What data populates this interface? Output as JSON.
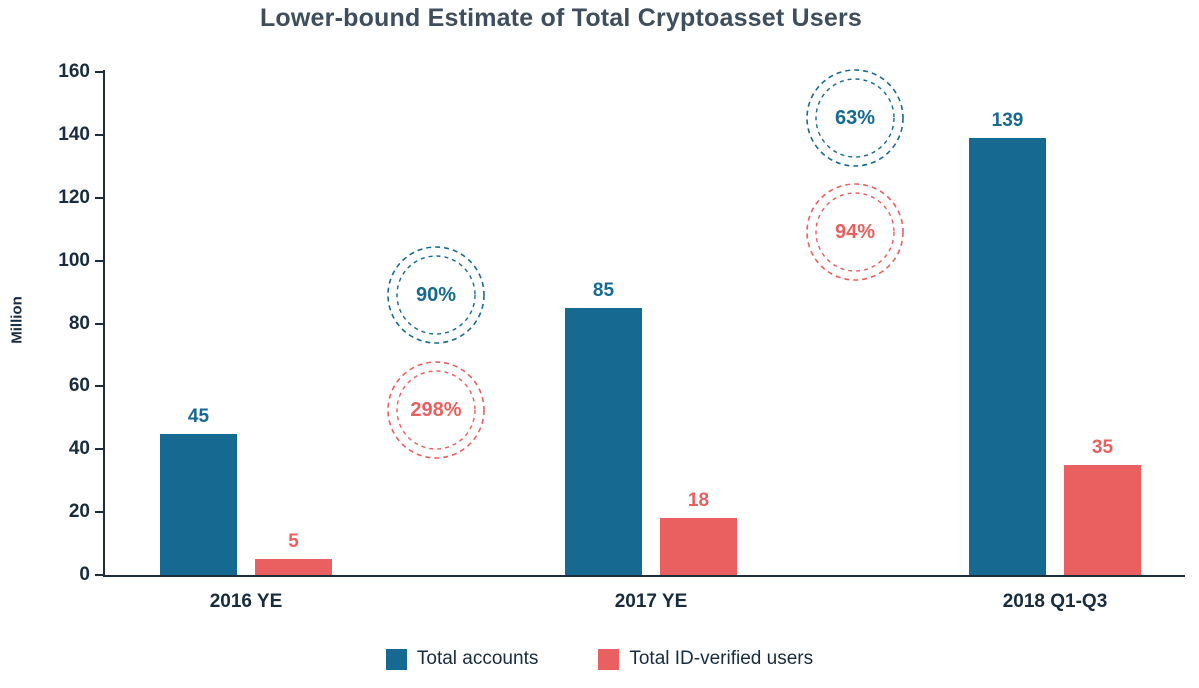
{
  "chart_data": {
    "type": "bar",
    "title": "Lower-bound Estimate of Total Cryptoasset Users",
    "xlabel": "",
    "ylabel": "Million",
    "ylim": [
      0,
      160
    ],
    "ytick_step": 20,
    "grid": false,
    "legend_position": "bottom",
    "categories": [
      "2016 YE",
      "2017 YE",
      "2018 Q1-Q3"
    ],
    "series": [
      {
        "name": "Total accounts",
        "color": "#166a92",
        "values": [
          45,
          85,
          139
        ]
      },
      {
        "name": "Total ID-verified users",
        "color": "#ea5f5f",
        "values": [
          5,
          18,
          35
        ]
      }
    ],
    "annotations": [
      {
        "text": "90%",
        "series": "Total accounts",
        "between": [
          "2016 YE",
          "2017 YE"
        ],
        "color": "#166a92"
      },
      {
        "text": "298%",
        "series": "Total ID-verified users",
        "between": [
          "2016 YE",
          "2017 YE"
        ],
        "color": "#ea5f5f"
      },
      {
        "text": "63%",
        "series": "Total accounts",
        "between": [
          "2017 YE",
          "2018 Q1-Q3"
        ],
        "color": "#166a92"
      },
      {
        "text": "94%",
        "series": "Total ID-verified users",
        "between": [
          "2017 YE",
          "2018 Q1-Q3"
        ],
        "color": "#ea5f5f"
      }
    ]
  },
  "colors": {
    "title": "#3e4e5c",
    "axis": "#1d2d39",
    "tick_label": "#182c3d",
    "accent_blue": "#166a92",
    "accent_red": "#ea5f5f"
  }
}
